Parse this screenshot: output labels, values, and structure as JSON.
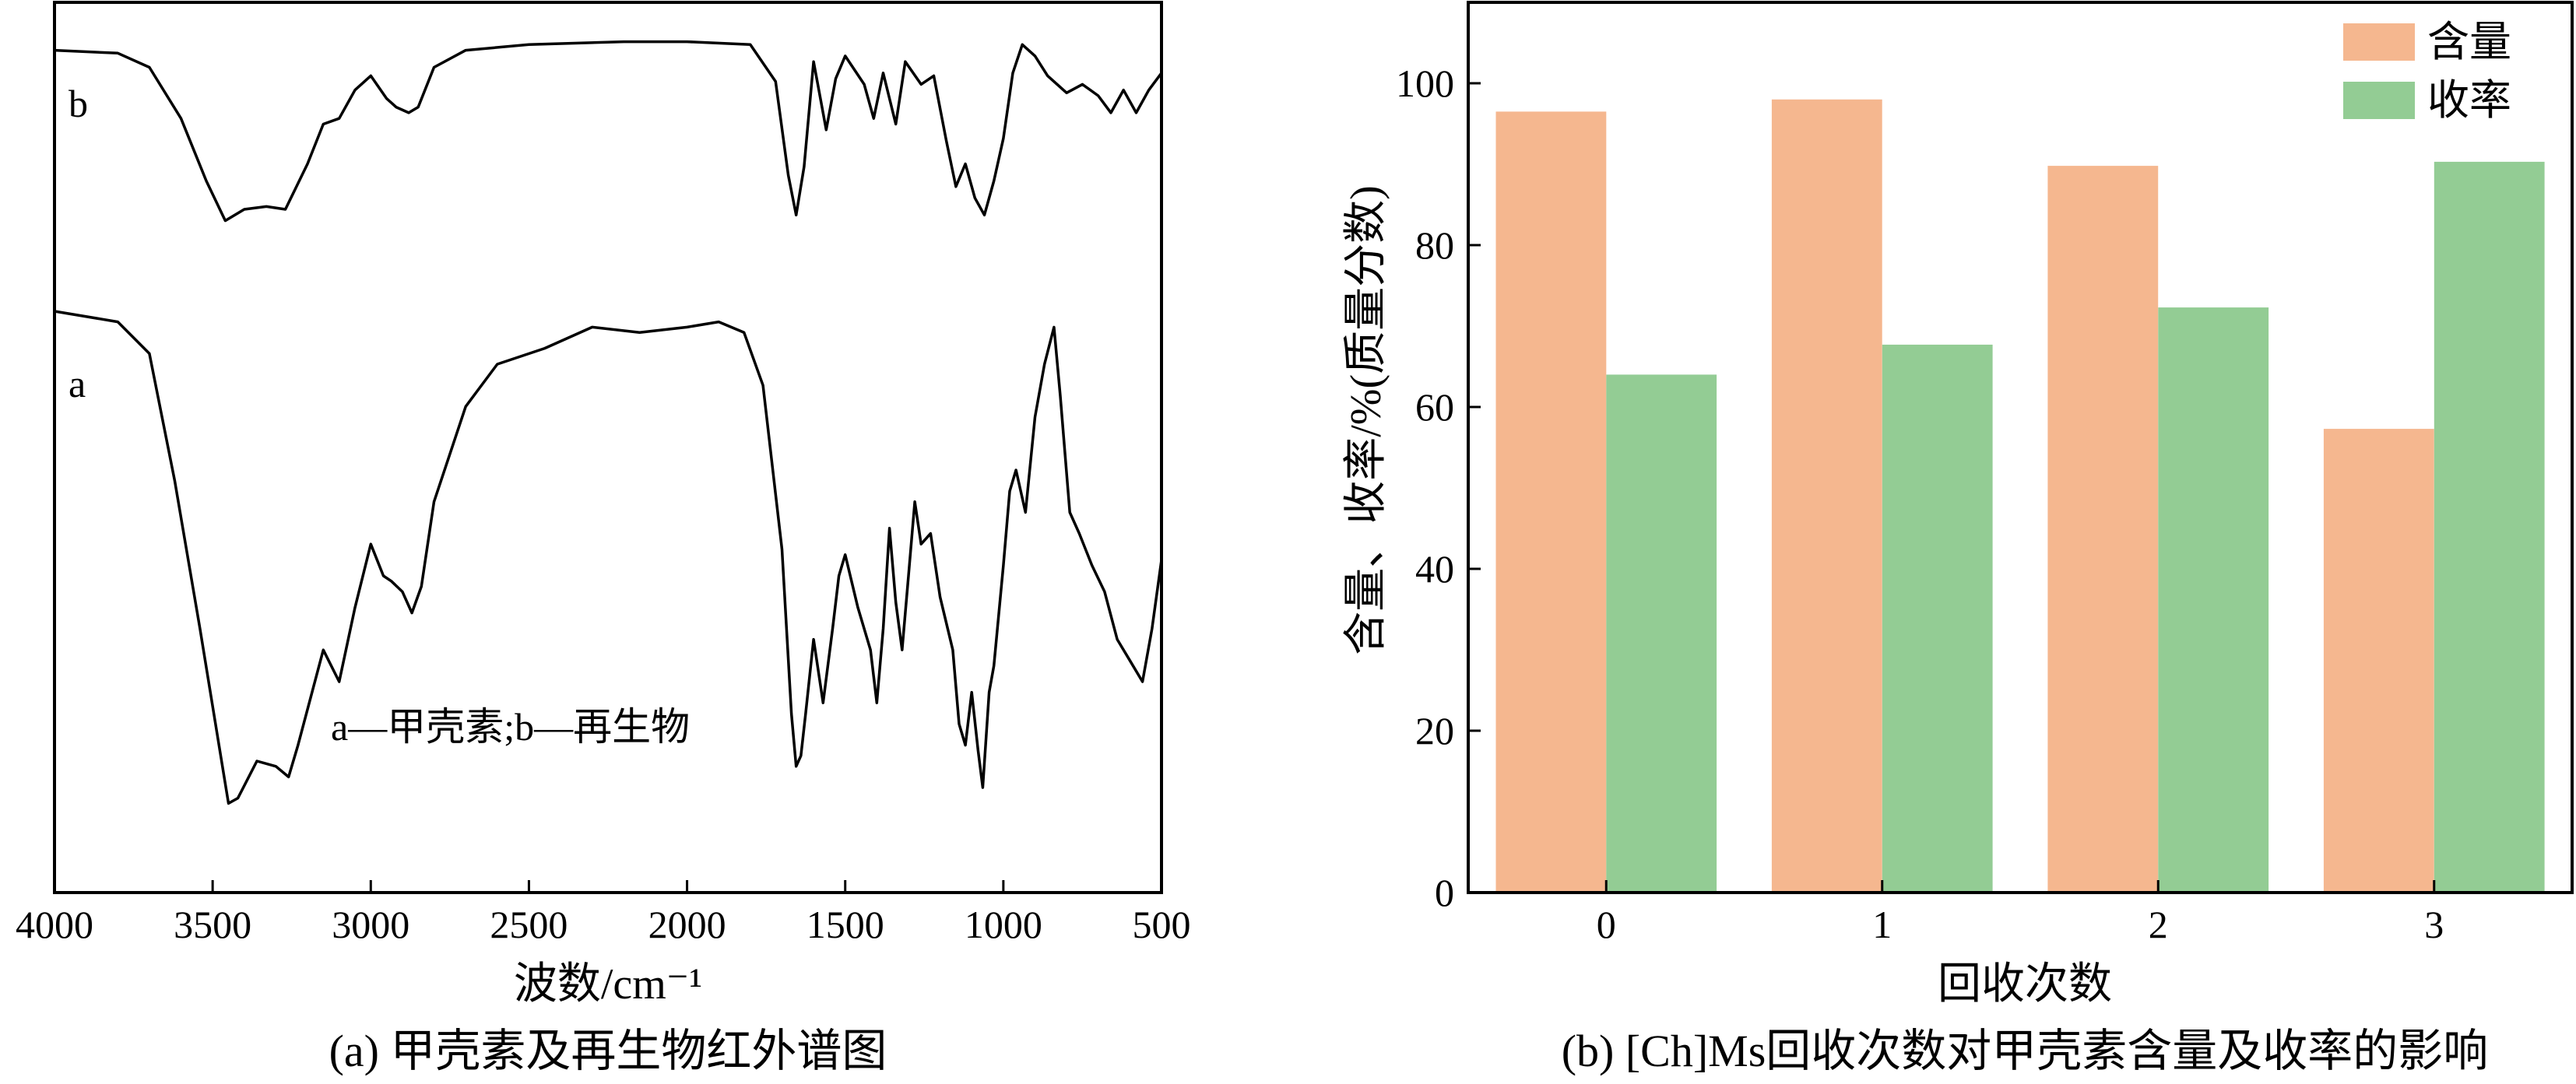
{
  "chart_data": [
    {
      "type": "line",
      "title": "",
      "caption": "(a) 甲壳素及再生物红外谱图",
      "xlabel": "波数/cm⁻¹",
      "ylabel": "",
      "xlim": [
        4000,
        500
      ],
      "x_ticks": [
        "4000",
        "3500",
        "3000",
        "2500",
        "2000",
        "1500",
        "1000",
        "500"
      ],
      "annotation": "a—甲壳素;b—再生物",
      "series": [
        {
          "name": "b",
          "points": [
            [
              4000,
              96
            ],
            [
              3800,
              95
            ],
            [
              3700,
              90
            ],
            [
              3600,
              72
            ],
            [
              3520,
              50
            ],
            [
              3460,
              36
            ],
            [
              3400,
              40
            ],
            [
              3330,
              41
            ],
            [
              3270,
              40
            ],
            [
              3200,
              56
            ],
            [
              3150,
              70
            ],
            [
              3100,
              72
            ],
            [
              3050,
              82
            ],
            [
              3000,
              87
            ],
            [
              2950,
              79
            ],
            [
              2920,
              76
            ],
            [
              2880,
              74
            ],
            [
              2850,
              76
            ],
            [
              2800,
              90
            ],
            [
              2700,
              96
            ],
            [
              2500,
              98
            ],
            [
              2200,
              99
            ],
            [
              2000,
              99
            ],
            [
              1800,
              98
            ],
            [
              1720,
              85
            ],
            [
              1680,
              52
            ],
            [
              1655,
              38
            ],
            [
              1630,
              55
            ],
            [
              1600,
              92
            ],
            [
              1560,
              68
            ],
            [
              1530,
              86
            ],
            [
              1500,
              94
            ],
            [
              1440,
              84
            ],
            [
              1410,
              72
            ],
            [
              1380,
              88
            ],
            [
              1340,
              70
            ],
            [
              1310,
              92
            ],
            [
              1260,
              84
            ],
            [
              1220,
              87
            ],
            [
              1180,
              64
            ],
            [
              1150,
              48
            ],
            [
              1120,
              56
            ],
            [
              1090,
              44
            ],
            [
              1060,
              38
            ],
            [
              1030,
              50
            ],
            [
              1000,
              65
            ],
            [
              970,
              88
            ],
            [
              940,
              98
            ],
            [
              900,
              94
            ],
            [
              860,
              87
            ],
            [
              800,
              81
            ],
            [
              750,
              84
            ],
            [
              700,
              80
            ],
            [
              660,
              74
            ],
            [
              620,
              82
            ],
            [
              580,
              74
            ],
            [
              540,
              82
            ],
            [
              500,
              88
            ]
          ]
        },
        {
          "name": "a",
          "points": [
            [
              4000,
              100
            ],
            [
              3800,
              98
            ],
            [
              3700,
              92
            ],
            [
              3620,
              68
            ],
            [
              3540,
              40
            ],
            [
              3480,
              18
            ],
            [
              3450,
              7
            ],
            [
              3420,
              8
            ],
            [
              3360,
              15
            ],
            [
              3300,
              14
            ],
            [
              3260,
              12
            ],
            [
              3230,
              18
            ],
            [
              3150,
              36
            ],
            [
              3100,
              30
            ],
            [
              3050,
              44
            ],
            [
              3000,
              56
            ],
            [
              2960,
              50
            ],
            [
              2935,
              49
            ],
            [
              2900,
              47
            ],
            [
              2870,
              43
            ],
            [
              2840,
              48
            ],
            [
              2800,
              64
            ],
            [
              2700,
              82
            ],
            [
              2600,
              90
            ],
            [
              2450,
              93
            ],
            [
              2300,
              97
            ],
            [
              2150,
              96
            ],
            [
              2000,
              97
            ],
            [
              1900,
              98
            ],
            [
              1820,
              96
            ],
            [
              1760,
              86
            ],
            [
              1700,
              55
            ],
            [
              1670,
              24
            ],
            [
              1655,
              14
            ],
            [
              1640,
              16
            ],
            [
              1625,
              24
            ],
            [
              1600,
              38
            ],
            [
              1570,
              26
            ],
            [
              1540,
              40
            ],
            [
              1520,
              50
            ],
            [
              1500,
              54
            ],
            [
              1460,
              44
            ],
            [
              1420,
              36
            ],
            [
              1400,
              26
            ],
            [
              1380,
              40
            ],
            [
              1360,
              59
            ],
            [
              1340,
              45
            ],
            [
              1320,
              36
            ],
            [
              1300,
              50
            ],
            [
              1280,
              64
            ],
            [
              1260,
              56
            ],
            [
              1230,
              58
            ],
            [
              1200,
              46
            ],
            [
              1160,
              36
            ],
            [
              1140,
              22
            ],
            [
              1120,
              18
            ],
            [
              1100,
              28
            ],
            [
              1080,
              17
            ],
            [
              1065,
              10
            ],
            [
              1045,
              28
            ],
            [
              1030,
              33
            ],
            [
              1000,
              52
            ],
            [
              980,
              66
            ],
            [
              960,
              70
            ],
            [
              930,
              62
            ],
            [
              900,
              80
            ],
            [
              870,
              90
            ],
            [
              840,
              97
            ],
            [
              820,
              84
            ],
            [
              790,
              62
            ],
            [
              760,
              58
            ],
            [
              720,
              52
            ],
            [
              680,
              47
            ],
            [
              640,
              38
            ],
            [
              600,
              34
            ],
            [
              560,
              30
            ],
            [
              530,
              40
            ],
            [
              500,
              53
            ]
          ]
        }
      ]
    },
    {
      "type": "bar",
      "title": "",
      "caption": "(b) [Ch]Ms回收次数对甲壳素含量及收率的影响",
      "xlabel": "回收次数",
      "ylabel": "含量、收率/%(质量分数)",
      "categories": [
        "0",
        "1",
        "2",
        "3"
      ],
      "ylim": [
        0,
        110
      ],
      "y_ticks": [
        "0",
        "20",
        "40",
        "60",
        "80",
        "100"
      ],
      "series": [
        {
          "name": "含量",
          "color": "#f5b78f",
          "values": [
            96.5,
            98,
            89.8,
            57.3
          ]
        },
        {
          "name": "收率",
          "color": "#93cc94",
          "values": [
            64,
            67.7,
            72.3,
            90.3
          ]
        }
      ],
      "legend_position": "top-right"
    }
  ]
}
